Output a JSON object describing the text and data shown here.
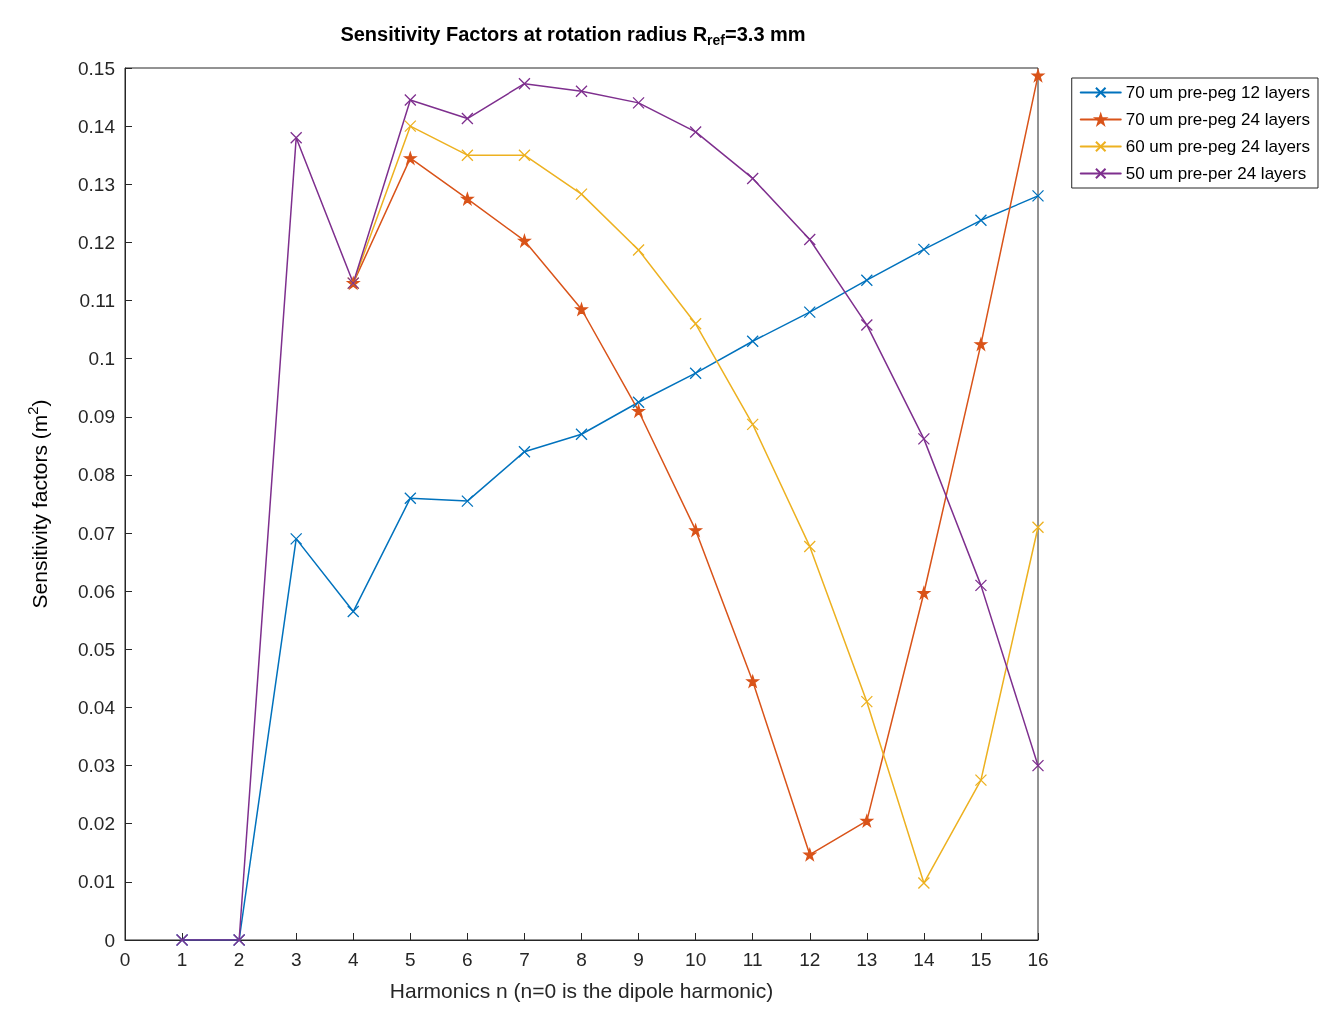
{
  "chart_data": {
    "type": "line",
    "title": "Sensitivity Factors at rotation radius R$_{ref}$=3.3 mm",
    "xlabel": "Harmonics n (n=0 is the dipole harmonic)",
    "ylabel": "Sensitivity factors (m$^{2}$)",
    "x": [
      1,
      2,
      3,
      4,
      5,
      6,
      7,
      8,
      9,
      10,
      11,
      12,
      13,
      14,
      15,
      16
    ],
    "xlim": [
      0,
      16
    ],
    "xticks": [
      0,
      1,
      2,
      3,
      4,
      5,
      6,
      7,
      8,
      9,
      10,
      11,
      12,
      13,
      14,
      15,
      16
    ],
    "ylim": [
      0,
      0.15
    ],
    "yticks": [
      0,
      0.01,
      0.02,
      0.03,
      0.04,
      0.05,
      0.06,
      0.07,
      0.08,
      0.09,
      0.1,
      0.11,
      0.12,
      0.13,
      0.14,
      0.15
    ],
    "grid": false,
    "legend": "top right",
    "marker": "cross",
    "line_style": "solid",
    "series": [
      {
        "name": "70 um pre-peg 12 layers",
        "color": "#0072bd",
        "values": [
          0,
          0,
          0.069,
          0.0565,
          0.076,
          0.0755,
          0.084,
          0.087,
          0.0925,
          0.0975,
          0.103,
          0.108,
          0.1135,
          0.1188,
          0.1238,
          0.128
        ]
      },
      {
        "name": "70 um pre-peg 24 layers",
        "color": "#d95319",
        "marker": "star",
        "values": [
          null,
          null,
          null,
          0.113,
          0.1345,
          0.1275,
          0.1203,
          0.1085,
          0.091,
          0.0705,
          0.0445,
          0.0147,
          0.0205,
          0.0597,
          0.1025,
          0.1487
        ]
      },
      {
        "name": "60 um pre-peg 24 layers",
        "color": "#edb120",
        "values": [
          null,
          null,
          null,
          0.113,
          0.14,
          0.135,
          0.135,
          0.1283,
          0.1187,
          0.106,
          0.0887,
          0.0677,
          0.041,
          0.0098,
          0.0275,
          0.071
        ]
      },
      {
        "name": "50 um pre-per 24 layers",
        "color": "#7e2f8e",
        "values": [
          0,
          0,
          0.138,
          0.113,
          0.1445,
          0.1413,
          0.1473,
          0.146,
          0.144,
          0.139,
          0.131,
          0.1205,
          0.1058,
          0.0862,
          0.061,
          0.03
        ]
      }
    ]
  }
}
